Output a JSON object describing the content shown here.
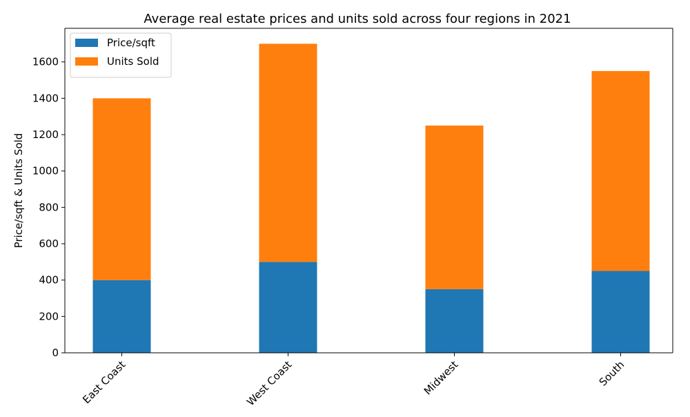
{
  "chart_data": {
    "type": "bar",
    "stacked": true,
    "title": "Average real estate prices and units sold across four regions in 2021",
    "xlabel": "",
    "ylabel": "Price/sqft & Units Sold",
    "categories": [
      "East Coast",
      "West Coast",
      "Midwest",
      "South"
    ],
    "series": [
      {
        "name": "Price/sqft",
        "values": [
          400,
          500,
          350,
          450
        ],
        "color": "#1f77b4"
      },
      {
        "name": "Units Sold",
        "values": [
          1000,
          1200,
          900,
          1100
        ],
        "color": "#ff7f0e"
      }
    ],
    "ylim": [
      0,
      1785
    ],
    "yticks": [
      0,
      200,
      400,
      600,
      800,
      1000,
      1200,
      1400,
      1600
    ],
    "grid": false,
    "legend_position": "top-left"
  }
}
